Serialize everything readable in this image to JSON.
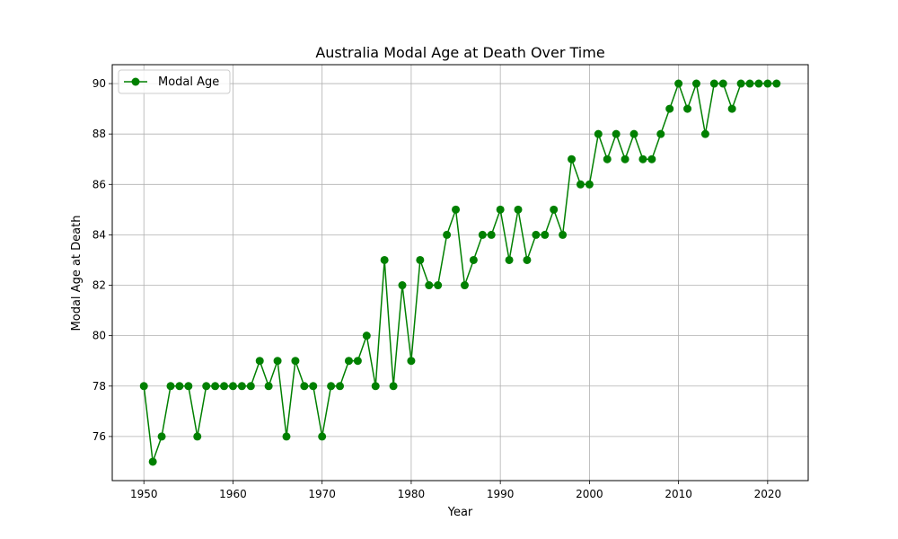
{
  "chart_data": {
    "type": "line",
    "title": "Australia Modal Age at Death Over Time",
    "xlabel": "Year",
    "ylabel": "Modal Age at Death",
    "xlim": [
      1946.45,
      2024.55
    ],
    "ylim": [
      74.25,
      90.75
    ],
    "xticks": [
      1950,
      1960,
      1970,
      1980,
      1990,
      2000,
      2010,
      2020
    ],
    "yticks": [
      76,
      78,
      80,
      82,
      84,
      86,
      88,
      90
    ],
    "grid": true,
    "legend_position": "upper-left",
    "series": [
      {
        "name": "Modal Age",
        "color": "#008000",
        "marker": "circle",
        "x": [
          1950,
          1951,
          1952,
          1953,
          1954,
          1955,
          1956,
          1957,
          1958,
          1959,
          1960,
          1961,
          1962,
          1963,
          1964,
          1965,
          1966,
          1967,
          1968,
          1969,
          1970,
          1971,
          1972,
          1973,
          1974,
          1975,
          1976,
          1977,
          1978,
          1979,
          1980,
          1981,
          1982,
          1983,
          1984,
          1985,
          1986,
          1987,
          1988,
          1989,
          1990,
          1991,
          1992,
          1993,
          1994,
          1995,
          1996,
          1997,
          1998,
          1999,
          2000,
          2001,
          2002,
          2003,
          2004,
          2005,
          2006,
          2007,
          2008,
          2009,
          2010,
          2011,
          2012,
          2013,
          2014,
          2015,
          2016,
          2017,
          2018,
          2019,
          2020,
          2021
        ],
        "values": [
          78,
          75,
          76,
          78,
          78,
          78,
          76,
          78,
          78,
          78,
          78,
          78,
          78,
          79,
          78,
          79,
          76,
          79,
          78,
          78,
          76,
          78,
          78,
          79,
          79,
          80,
          78,
          83,
          78,
          82,
          79,
          83,
          82,
          82,
          84,
          85,
          82,
          83,
          84,
          84,
          85,
          83,
          85,
          83,
          84,
          84,
          85,
          84,
          87,
          86,
          86,
          88,
          87,
          88,
          87,
          88,
          87,
          87,
          88,
          89,
          90,
          89,
          90,
          88,
          90,
          90,
          89,
          90,
          90,
          90,
          90,
          90
        ]
      }
    ]
  }
}
